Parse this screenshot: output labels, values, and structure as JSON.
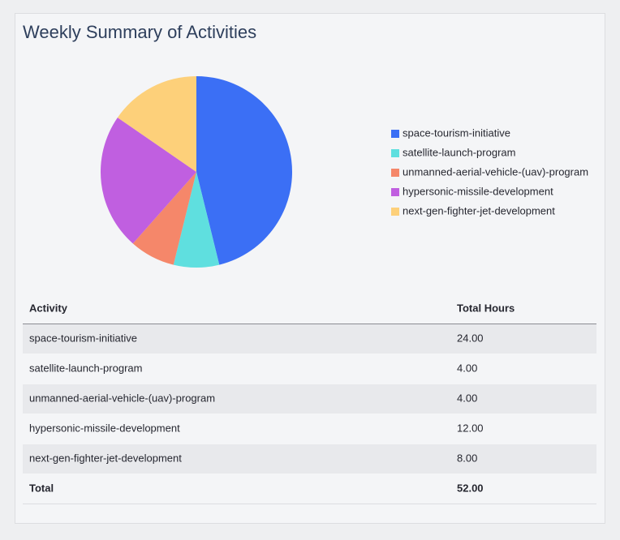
{
  "title": "Weekly Summary of Activities",
  "chart_data": {
    "type": "pie",
    "categories": [
      "space-tourism-initiative",
      "satellite-launch-program",
      "unmanned-aerial-vehicle-(uav)-program",
      "hypersonic-missile-development",
      "next-gen-fighter-jet-development"
    ],
    "values": [
      24,
      4,
      4,
      12,
      8
    ],
    "colors": [
      "#3b6ff5",
      "#5fdfdf",
      "#f5876a",
      "#c05fe0",
      "#fdd07a"
    ],
    "legend": "right"
  },
  "table": {
    "columns": [
      "Activity",
      "Total Hours"
    ],
    "rows": [
      [
        "space-tourism-initiative",
        "24.00"
      ],
      [
        "satellite-launch-program",
        "4.00"
      ],
      [
        "unmanned-aerial-vehicle-(uav)-program",
        "4.00"
      ],
      [
        "hypersonic-missile-development",
        "12.00"
      ],
      [
        "next-gen-fighter-jet-development",
        "8.00"
      ]
    ],
    "footer": [
      "Total",
      "52.00"
    ]
  }
}
